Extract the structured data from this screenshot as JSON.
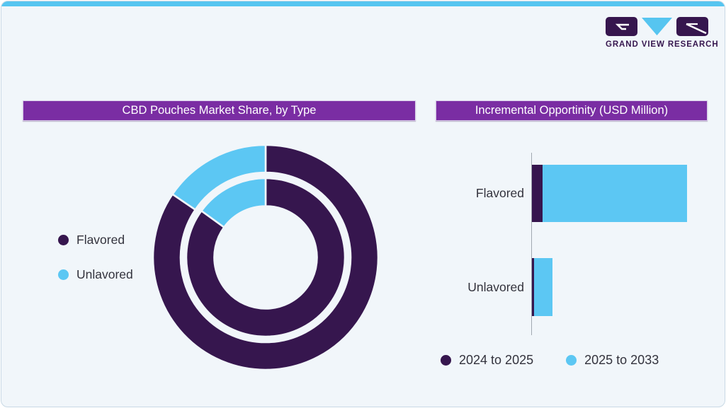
{
  "brand": {
    "logo_text": "GRAND VIEW RESEARCH",
    "colors": {
      "dark_purple": "#36164e",
      "light_blue": "#5cc7f3",
      "header_purple": "#7a2da3"
    }
  },
  "page": {
    "background": "#f1f6fa",
    "top_strip_color": "#56c5f0",
    "axis_color": "#a2a9b1"
  },
  "chart_data": [
    {
      "type": "donut",
      "title": "CBD Pouches Market Share, by Type",
      "legend": [
        {
          "label": "Flavored",
          "color": "#36164e"
        },
        {
          "label": "Unlavored",
          "color": "#5cc7f3"
        }
      ],
      "rings": [
        {
          "name": "outer",
          "slices": [
            {
              "label": "Flavored",
              "pct": 84.5
            },
            {
              "label": "Unlavored",
              "pct": 15.5
            }
          ]
        },
        {
          "name": "inner",
          "slices": [
            {
              "label": "Flavored",
              "pct": 85
            },
            {
              "label": "Unlavored",
              "pct": 15
            }
          ]
        }
      ],
      "start_angle": "12 o'clock",
      "value_labels_shown": false,
      "values_estimated_from_arc_angles": true
    },
    {
      "type": "bar",
      "orientation": "horizontal",
      "stacked": true,
      "title": "Incremental Opportinity (USD Million)",
      "categories": [
        "Flavored",
        "Unlavored"
      ],
      "series": [
        {
          "name": "2024 to 2025",
          "color": "#36164e",
          "values": [
            15,
            2.5
          ]
        },
        {
          "name": "2025 to 2033",
          "color": "#5cc7f3",
          "values": [
            204,
            26
          ]
        }
      ],
      "unit": "relative bar length (axis unlabeled)",
      "values_estimated_from_pixels": true,
      "legend_position": "bottom",
      "axis": {
        "baseline": "left vertical line",
        "ticks": "none",
        "gridlines": "none"
      }
    }
  ]
}
